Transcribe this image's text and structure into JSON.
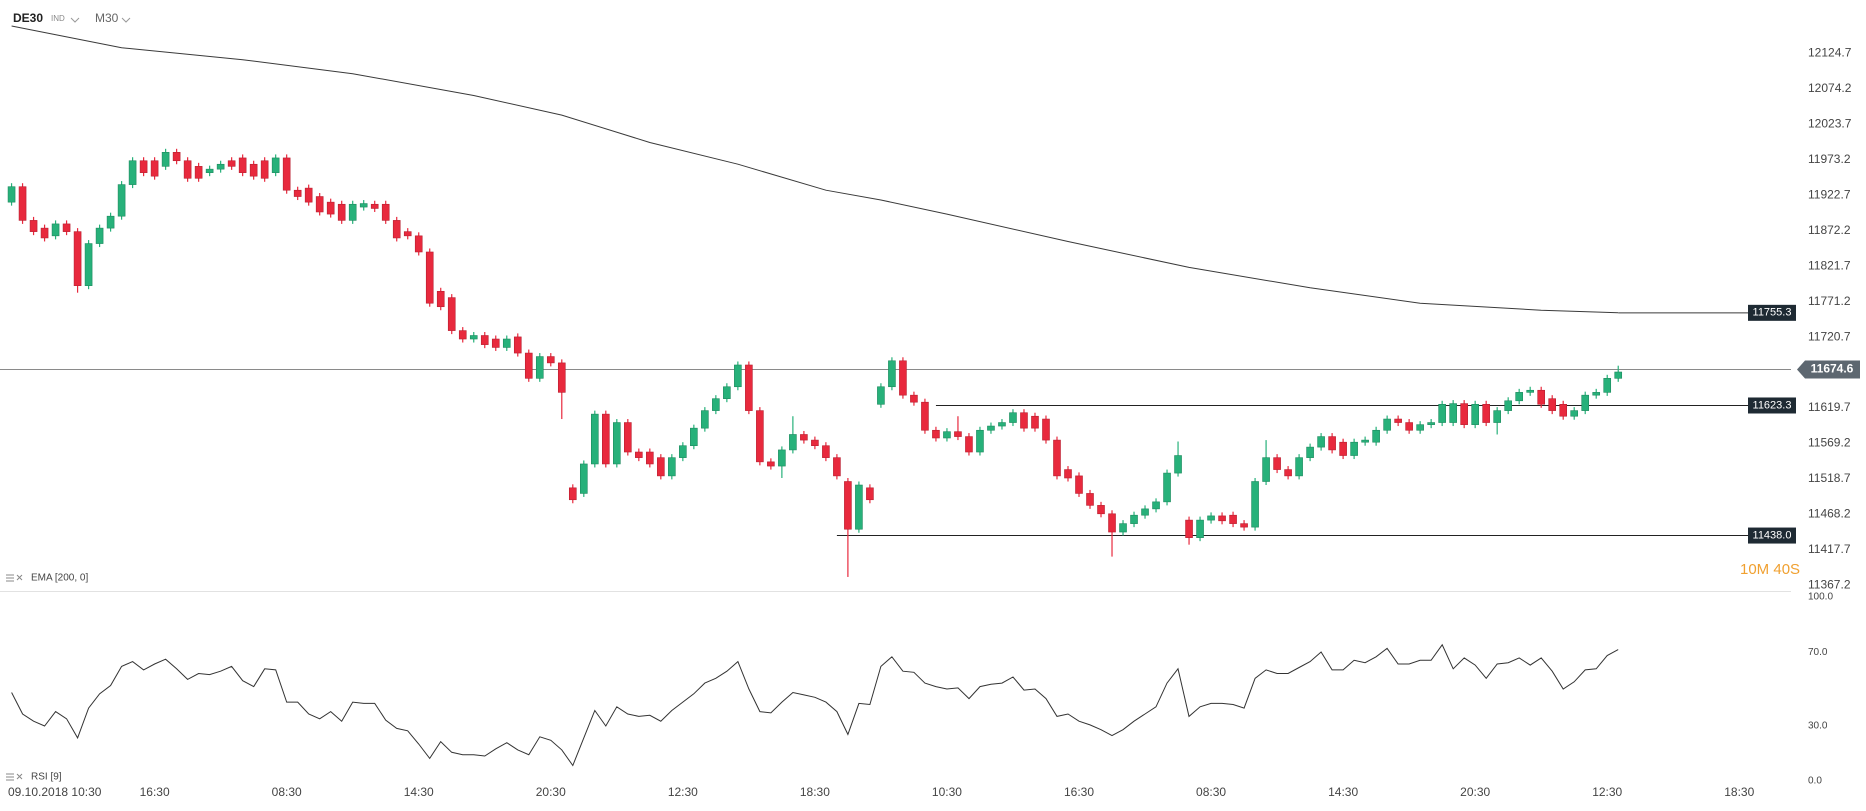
{
  "chart_data": {
    "type": "candlestick",
    "symbol": "DE30",
    "market": "IND",
    "timeframe": "M30",
    "up_color": "#27b17a",
    "down_color": "#e8293d",
    "open": [
      11913,
      11935,
      11887,
      11876,
      11865,
      11882,
      11871,
      11794,
      11854,
      11876,
      11893,
      11938,
      11972,
      11972,
      11964,
      11984,
      11972,
      11964,
      11955,
      11960,
      11972,
      11976,
      11967,
      11972,
      11955,
      11976,
      11930,
      11933,
      11921,
      11913,
      11910,
      11887,
      11906,
      11910,
      11910,
      11887,
      11871,
      11865,
      11842,
      11786,
      11777,
      11730,
      11718,
      11723,
      11718,
      11706,
      11721,
      11698,
      11662,
      11693,
      11684,
      11506,
      11498,
      11540,
      11611,
      11540,
      11599,
      11557,
      11557,
      11549,
      11523,
      11549,
      11566,
      11591,
      11616,
      11633,
      11650,
      11681,
      11616,
      11543,
      11537,
      11560,
      11582,
      11574,
      11566,
      11549,
      11515,
      11447,
      11506,
      11625,
      11650,
      11687,
      11638,
      11628,
      11588,
      11577,
      11586,
      11579,
      11557,
      11588,
      11594,
      11599,
      11613,
      11608,
      11604,
      11574,
      11532,
      11523,
      11498,
      11481,
      11469,
      11443,
      11455,
      11467,
      11476,
      11486,
      11527,
      11460,
      11435,
      11460,
      11466,
      11467,
      11455,
      11450,
      11515,
      11549,
      11532,
      11523,
      11549,
      11564,
      11579,
      11571,
      11552,
      11571,
      11571,
      11588,
      11604,
      11599,
      11588,
      11596,
      11599,
      11599,
      11626,
      11596,
      11625,
      11599,
      11616,
      11630,
      11642,
      11645,
      11633,
      11625,
      11608,
      11616,
      11638,
      11642,
      11662
    ],
    "high": [
      11940,
      11940,
      11892,
      11881,
      11887,
      11887,
      11876,
      11859,
      11881,
      11898,
      11943,
      11977,
      11977,
      11977,
      11989,
      11989,
      11977,
      11969,
      11965,
      11972,
      11977,
      11981,
      11972,
      11977,
      11981,
      11981,
      11935,
      11938,
      11926,
      11918,
      11915,
      11915,
      11916,
      11915,
      11915,
      11892,
      11876,
      11870,
      11847,
      11791,
      11782,
      11735,
      11728,
      11728,
      11723,
      11723,
      11726,
      11703,
      11698,
      11698,
      11689,
      11511,
      11545,
      11616,
      11616,
      11604,
      11604,
      11562,
      11562,
      11554,
      11554,
      11571,
      11596,
      11621,
      11638,
      11655,
      11686,
      11686,
      11621,
      11548,
      11565,
      11608,
      11587,
      11579,
      11571,
      11554,
      11520,
      11515,
      11511,
      11655,
      11692,
      11692,
      11643,
      11633,
      11593,
      11591,
      11608,
      11584,
      11593,
      11599,
      11604,
      11618,
      11618,
      11613,
      11609,
      11579,
      11537,
      11528,
      11503,
      11486,
      11474,
      11460,
      11472,
      11481,
      11491,
      11532,
      11572,
      11465,
      11465,
      11471,
      11471,
      11472,
      11460,
      11520,
      11574,
      11554,
      11537,
      11554,
      11569,
      11584,
      11584,
      11576,
      11576,
      11579,
      11593,
      11609,
      11609,
      11604,
      11601,
      11604,
      11630,
      11631,
      11631,
      11630,
      11630,
      11621,
      11635,
      11647,
      11650,
      11650,
      11638,
      11630,
      11621,
      11643,
      11647,
      11667,
      11680
    ],
    "low": [
      11908,
      11882,
      11866,
      11857,
      11860,
      11866,
      11784,
      11789,
      11849,
      11871,
      11888,
      11933,
      11950,
      11945,
      11959,
      11967,
      11942,
      11942,
      11950,
      11955,
      11959,
      11950,
      11945,
      11942,
      11950,
      11925,
      11916,
      11908,
      11894,
      11891,
      11882,
      11882,
      11901,
      11899,
      11882,
      11857,
      11860,
      11837,
      11764,
      11759,
      11725,
      11713,
      11713,
      11705,
      11701,
      11701,
      11693,
      11657,
      11657,
      11679,
      11604,
      11484,
      11493,
      11535,
      11535,
      11535,
      11552,
      11544,
      11535,
      11518,
      11518,
      11544,
      11561,
      11586,
      11611,
      11628,
      11645,
      11611,
      11538,
      11532,
      11520,
      11555,
      11569,
      11561,
      11544,
      11518,
      11379,
      11442,
      11484,
      11620,
      11645,
      11633,
      11623,
      11583,
      11572,
      11572,
      11574,
      11552,
      11552,
      11583,
      11589,
      11594,
      11586,
      11586,
      11569,
      11518,
      11515,
      11493,
      11476,
      11464,
      11408,
      11438,
      11450,
      11462,
      11471,
      11481,
      11522,
      11425,
      11430,
      11455,
      11454,
      11450,
      11445,
      11445,
      11510,
      11527,
      11518,
      11518,
      11544,
      11559,
      11555,
      11547,
      11547,
      11566,
      11566,
      11583,
      11594,
      11583,
      11583,
      11591,
      11594,
      11594,
      11591,
      11591,
      11594,
      11582,
      11611,
      11625,
      11637,
      11620,
      11611,
      11603,
      11603,
      11611,
      11633,
      11637,
      11657
    ],
    "close": [
      11935,
      11887,
      11871,
      11862,
      11882,
      11871,
      11794,
      11854,
      11876,
      11893,
      11938,
      11972,
      11955,
      11950,
      11984,
      11972,
      11947,
      11947,
      11960,
      11967,
      11964,
      11955,
      11950,
      11947,
      11976,
      11930,
      11921,
      11913,
      11899,
      11896,
      11887,
      11910,
      11911,
      11904,
      11887,
      11862,
      11865,
      11842,
      11769,
      11764,
      11730,
      11718,
      11723,
      11710,
      11706,
      11718,
      11698,
      11662,
      11693,
      11684,
      11642,
      11489,
      11540,
      11611,
      11540,
      11599,
      11557,
      11549,
      11540,
      11523,
      11549,
      11566,
      11591,
      11616,
      11633,
      11650,
      11681,
      11616,
      11543,
      11537,
      11560,
      11582,
      11574,
      11566,
      11549,
      11523,
      11447,
      11510,
      11489,
      11650,
      11687,
      11638,
      11628,
      11588,
      11577,
      11586,
      11579,
      11557,
      11588,
      11594,
      11599,
      11613,
      11591,
      11591,
      11574,
      11523,
      11520,
      11498,
      11481,
      11469,
      11443,
      11455,
      11467,
      11476,
      11486,
      11527,
      11552,
      11435,
      11460,
      11466,
      11459,
      11455,
      11450,
      11515,
      11549,
      11532,
      11523,
      11549,
      11564,
      11579,
      11560,
      11552,
      11571,
      11574,
      11588,
      11604,
      11599,
      11588,
      11596,
      11599,
      11625,
      11626,
      11596,
      11625,
      11599,
      11616,
      11630,
      11642,
      11645,
      11625,
      11616,
      11608,
      11616,
      11638,
      11642,
      11662,
      11671
    ],
    "xlim": [
      -1.05,
      161.7
    ],
    "xticks": [
      {
        "value": 1,
        "label": "09.10.2018  10:30"
      },
      {
        "value": 13,
        "label": "16:30"
      },
      {
        "value": 25,
        "label": "08:30"
      },
      {
        "value": 37,
        "label": "14:30"
      },
      {
        "value": 49,
        "label": "20:30"
      },
      {
        "value": 61,
        "label": "12:30"
      },
      {
        "value": 73,
        "label": "18:30"
      },
      {
        "value": 85,
        "label": "10:30"
      },
      {
        "value": 97,
        "label": "16:30"
      },
      {
        "value": 109,
        "label": "08:30"
      },
      {
        "value": 121,
        "label": "14:30"
      },
      {
        "value": 133,
        "label": "20:30"
      },
      {
        "value": 145,
        "label": "12:30"
      },
      {
        "value": 157,
        "label": "18:30"
      }
    ],
    "ylim": [
      11359,
      12201
    ],
    "yticks": [
      12124.7,
      12074.2,
      12023.7,
      11973.2,
      11922.7,
      11872.2,
      11821.7,
      11771.2,
      11720.7,
      11619.7,
      11569.2,
      11518.7,
      11468.2,
      11417.7,
      11367.2
    ],
    "current_price": 11674.6,
    "levels": [
      {
        "value": 11623.3,
        "from": 84
      },
      {
        "value": 11438,
        "label": "11438.0",
        "from": 75
      }
    ],
    "ema": {
      "label": "EMA [200, 0]",
      "color": "#3a3a3a",
      "x": [
        0,
        10,
        21,
        31,
        42,
        50,
        58,
        66,
        74,
        79,
        85,
        96,
        107,
        118,
        128,
        139,
        146
      ],
      "values": [
        12164,
        12133,
        12116,
        12096,
        12065,
        12037,
        11998,
        11967,
        11930,
        11916,
        11896,
        11857,
        11820,
        11791,
        11769,
        11759,
        11755.3
      ]
    },
    "countdown": "10M 40S",
    "rsi": {
      "label": "RSI [9]",
      "color": "#333333",
      "ylim": [
        0,
        100
      ],
      "yticks": [
        {
          "value": 100,
          "label": "100.0"
        },
        {
          "value": 70,
          "label": "70.0"
        },
        {
          "value": 30,
          "label": "30.0"
        },
        {
          "value": 0,
          "label": "0.0"
        }
      ],
      "values": [
        48.1,
        36.4,
        32.5,
        29.9,
        37.7,
        33.8,
        23.4,
        39.6,
        47.4,
        51.9,
        62.3,
        64.9,
        60.4,
        63.6,
        66.2,
        61.0,
        55.2,
        58.4,
        57.8,
        59.7,
        62.3,
        54.5,
        51.3,
        61.0,
        60.4,
        42.9,
        42.9,
        36.4,
        33.8,
        37.7,
        32.5,
        42.9,
        42.2,
        42.2,
        33.1,
        28.6,
        27.3,
        20.1,
        12.3,
        21.4,
        15.6,
        14.3,
        14.3,
        13.6,
        17.5,
        20.8,
        16.9,
        14.3,
        24.0,
        22.1,
        16.9,
        8.4,
        23.4,
        38.3,
        29.9,
        40.3,
        36.4,
        35.1,
        35.7,
        32.5,
        38.3,
        42.9,
        47.4,
        53.2,
        55.8,
        59.7,
        64.9,
        50.0,
        37.7,
        37.0,
        42.9,
        48.1,
        46.8,
        45.5,
        42.9,
        37.7,
        25.3,
        42.2,
        41.6,
        62.3,
        67.5,
        59.7,
        59.1,
        53.2,
        51.3,
        50.0,
        50.6,
        44.8,
        51.3,
        52.6,
        53.2,
        56.5,
        49.4,
        50.0,
        44.8,
        35.1,
        36.4,
        32.5,
        30.5,
        27.9,
        24.7,
        27.9,
        32.5,
        36.4,
        40.3,
        53.2,
        61.0,
        35.1,
        40.3,
        42.2,
        42.2,
        41.6,
        39.6,
        55.8,
        60.4,
        58.4,
        58.4,
        61.7,
        64.9,
        70.1,
        60.4,
        60.4,
        65.6,
        64.3,
        67.5,
        72.1,
        63.6,
        63.6,
        65.6,
        65.6,
        74.0,
        61.0,
        66.9,
        63.0,
        55.8,
        63.6,
        64.3,
        66.9,
        63.0,
        66.9,
        59.7,
        50.0,
        53.9,
        60.4,
        61.0,
        68.2,
        71.4
      ]
    }
  }
}
